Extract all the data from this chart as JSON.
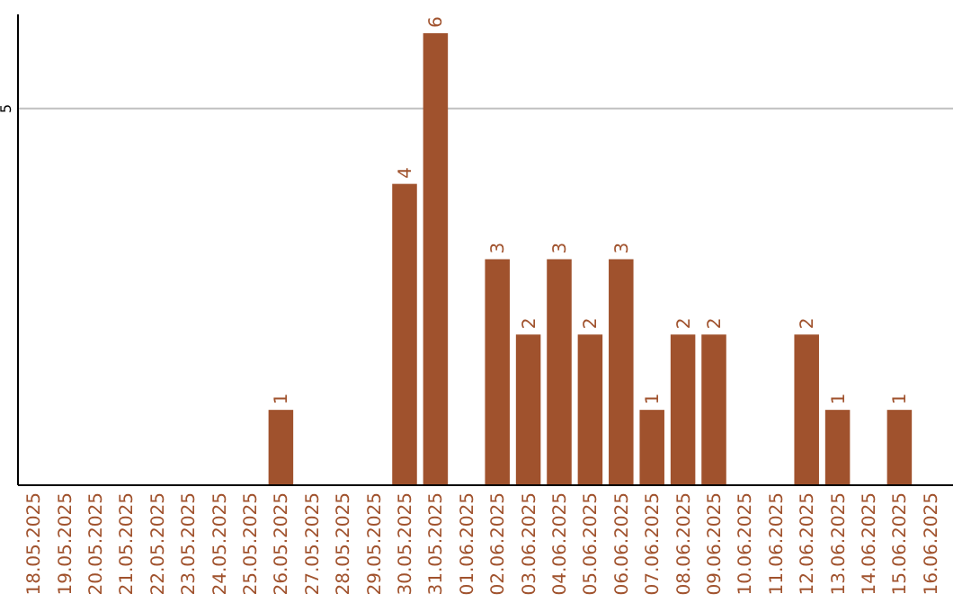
{
  "chart_data": {
    "type": "bar",
    "categories": [
      "18.05.2025",
      "19.05.2025",
      "20.05.2025",
      "21.05.2025",
      "22.05.2025",
      "23.05.2025",
      "24.05.2025",
      "25.05.2025",
      "26.05.2025",
      "27.05.2025",
      "28.05.2025",
      "29.05.2025",
      "30.05.2025",
      "31.05.2025",
      "01.06.2025",
      "02.06.2025",
      "03.06.2025",
      "04.06.2025",
      "05.06.2025",
      "06.06.2025",
      "07.06.2025",
      "08.06.2025",
      "09.06.2025",
      "10.06.2025",
      "11.06.2025",
      "12.06.2025",
      "13.06.2025",
      "14.06.2025",
      "15.06.2025",
      "16.06.2025"
    ],
    "values": [
      0,
      0,
      0,
      0,
      0,
      0,
      0,
      0,
      1,
      0,
      0,
      0,
      4,
      6,
      0,
      3,
      2,
      3,
      2,
      3,
      1,
      2,
      2,
      0,
      0,
      2,
      1,
      0,
      1,
      0
    ],
    "value_labels": [
      null,
      null,
      null,
      null,
      null,
      null,
      null,
      null,
      "1",
      null,
      null,
      null,
      "4",
      "6",
      null,
      "3",
      "2",
      "3",
      "2",
      "3",
      "1",
      "2",
      "2",
      null,
      null,
      "2",
      "1",
      null,
      "1",
      null
    ],
    "color": "#a0522d",
    "ylim": [
      0,
      6.25
    ],
    "yticks": [
      5
    ],
    "grid": "y"
  }
}
